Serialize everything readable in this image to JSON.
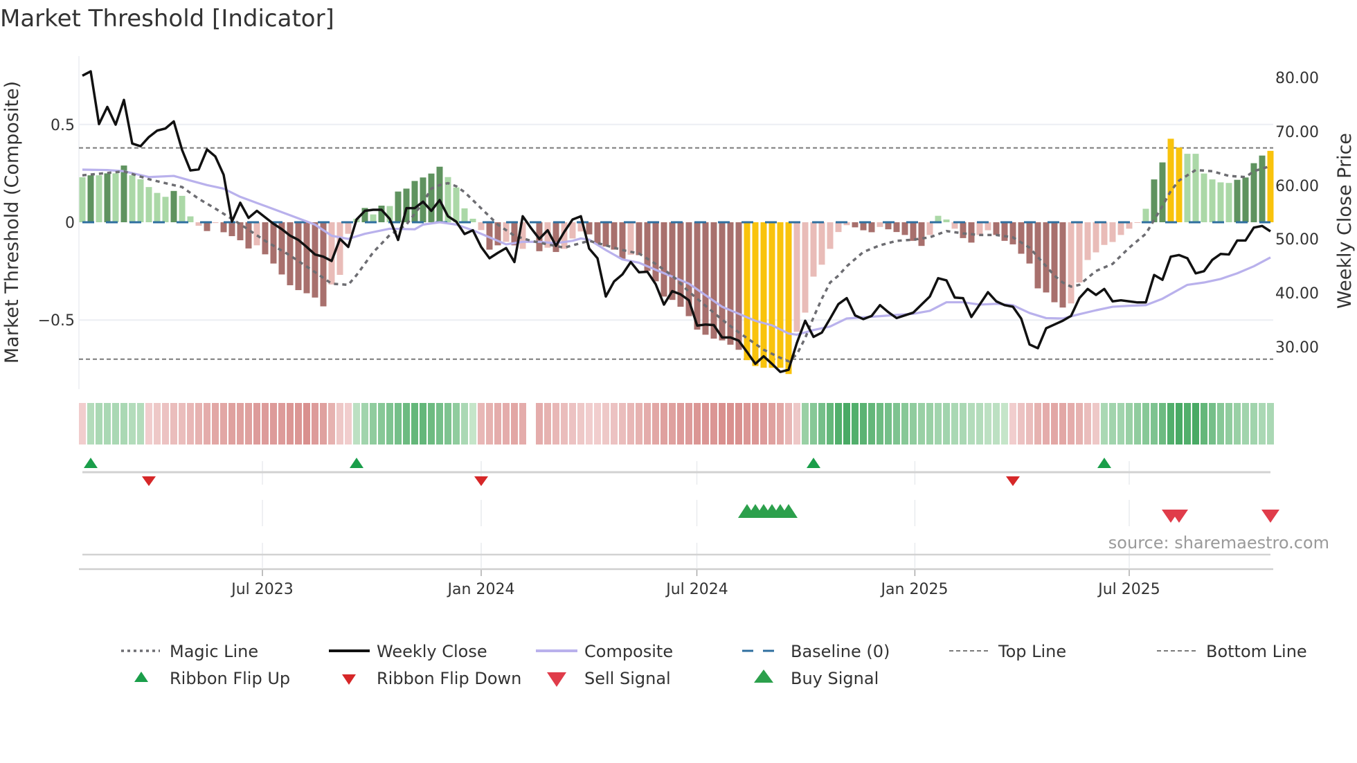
{
  "title": "Market Threshold [Indicator]",
  "source": "source: sharemaestro.com",
  "chart_data": {
    "type": "bar",
    "title": "Market Threshold [Indicator]",
    "ylabel": "Market Threshold (Composite)",
    "y2label": "Weekly Close Price",
    "xlabel": "",
    "x_unit": "week index",
    "ylim": [
      -0.83,
      0.83
    ],
    "y2lim": [
      20,
      83
    ],
    "yticks": [
      {
        "v": 0.5,
        "label": "0.5"
      },
      {
        "v": 0,
        "label": "0"
      },
      {
        "v": -0.5,
        "label": "−0.5"
      }
    ],
    "y2ticks": [
      {
        "v": 80,
        "label": "80.00"
      },
      {
        "v": 70,
        "label": "70.00"
      },
      {
        "v": 60,
        "label": "60.00"
      },
      {
        "v": 50,
        "label": "50.00"
      },
      {
        "v": 40,
        "label": "40.00"
      },
      {
        "v": 30,
        "label": "30.00"
      }
    ],
    "xticks": [
      {
        "i": 21.67,
        "label": "Jul 2023"
      },
      {
        "i": 48.0,
        "label": "Jan 2024"
      },
      {
        "i": 73.96,
        "label": "Jul 2024"
      },
      {
        "i": 100.2,
        "label": "Jan 2025"
      },
      {
        "i": 126.0,
        "label": "Jul 2025"
      }
    ],
    "top_line": 0.38,
    "bottom_line": -0.7,
    "baseline": 0,
    "grid": true,
    "legend_placement": "bottom",
    "composite_bars": [
      0.23,
      0.24,
      0.24,
      0.25,
      0.25,
      0.29,
      0.24,
      0.22,
      0.18,
      0.15,
      0.13,
      0.16,
      0.135,
      0.03,
      -0.018,
      -0.045,
      -0.004,
      -0.051,
      -0.071,
      -0.092,
      -0.134,
      -0.118,
      -0.164,
      -0.211,
      -0.267,
      -0.322,
      -0.347,
      -0.363,
      -0.385,
      -0.43,
      -0.318,
      -0.269,
      -0.059,
      0.018,
      0.073,
      0.04,
      0.085,
      0.083,
      0.157,
      0.172,
      0.211,
      0.229,
      0.249,
      0.284,
      0.231,
      0.178,
      0.071,
      0.018,
      -0.04,
      -0.14,
      -0.118,
      -0.1,
      -0.118,
      -0.136,
      null,
      -0.148,
      -0.13,
      -0.152,
      -0.136,
      -0.083,
      -0.047,
      -0.062,
      -0.109,
      -0.124,
      -0.14,
      -0.187,
      -0.166,
      -0.168,
      -0.249,
      -0.302,
      -0.38,
      -0.397,
      -0.432,
      -0.48,
      -0.549,
      -0.575,
      -0.595,
      -0.604,
      -0.626,
      -0.652,
      -0.705,
      -0.735,
      -0.744,
      -0.744,
      -0.744,
      -0.776,
      -0.56,
      -0.462,
      -0.278,
      -0.217,
      -0.136,
      -0.05,
      -0.015,
      -0.026,
      -0.041,
      -0.051,
      -0.024,
      -0.036,
      -0.05,
      -0.065,
      -0.095,
      -0.121,
      -0.065,
      0.033,
      0.014,
      -0.033,
      -0.081,
      -0.104,
      -0.065,
      -0.041,
      -0.065,
      -0.095,
      -0.113,
      -0.161,
      -0.211,
      -0.338,
      -0.359,
      -0.409,
      -0.436,
      -0.415,
      -0.308,
      -0.193,
      -0.154,
      -0.116,
      -0.101,
      -0.065,
      -0.033,
      0,
      0.069,
      0.219,
      0.306,
      0.427,
      0.382,
      0.35,
      0.35,
      0.249,
      0.219,
      0.204,
      0.201,
      0.217,
      0.229,
      0.302,
      0.341,
      0.365
    ],
    "bar_style": [
      "g",
      "G",
      "g",
      "G",
      "g",
      "G",
      "g",
      "g",
      "g",
      "g",
      "g",
      "G",
      "g",
      "g",
      "p",
      "P",
      "p",
      "P",
      "P",
      "P",
      "P",
      "p",
      "P",
      "P",
      "P",
      "P",
      "P",
      "P",
      "P",
      "P",
      "p",
      "p",
      "p",
      "g",
      "G",
      "g",
      "G",
      "g",
      "G",
      "G",
      "G",
      "G",
      "G",
      "G",
      "g",
      "g",
      "g",
      "g",
      "p",
      "P",
      "P",
      "p",
      "P",
      "p",
      "n",
      "P",
      "p",
      "P",
      "p",
      "p",
      "p",
      "P",
      "P",
      "P",
      "P",
      "P",
      "p",
      "P",
      "P",
      "P",
      "P",
      "P",
      "P",
      "P",
      "P",
      "P",
      "P",
      "P",
      "P",
      "P",
      "y",
      "y",
      "y",
      "y",
      "y",
      "y",
      "p",
      "p",
      "p",
      "p",
      "p",
      "p",
      "p",
      "P",
      "P",
      "P",
      "p",
      "P",
      "P",
      "P",
      "P",
      "P",
      "p",
      "g",
      "g",
      "p",
      "P",
      "P",
      "p",
      "p",
      "P",
      "P",
      "P",
      "P",
      "P",
      "P",
      "P",
      "P",
      "P",
      "p",
      "p",
      "p",
      "p",
      "p",
      "p",
      "p",
      "p",
      "p",
      "g",
      "G",
      "G",
      "y",
      "y",
      "g",
      "g",
      "g",
      "g",
      "g",
      "g",
      "G",
      "G",
      "G",
      "G",
      "y"
    ],
    "bar_colors": {
      "g": "#abd8a7",
      "G": "#5f935f",
      "p": "#e9bcb8",
      "P": "#a8706d",
      "y": "#f9c30c"
    },
    "weekly_close": [
      80.3,
      81.1,
      71.3,
      74.5,
      71.2,
      75.8,
      67.7,
      67.2,
      68.9,
      70.1,
      70.5,
      71.8,
      66.5,
      62.7,
      62.9,
      66.6,
      65.3,
      61.9,
      53.2,
      56.7,
      53.9,
      55.2,
      54.0,
      52.8,
      51.8,
      50.6,
      49.8,
      48.5,
      47.1,
      46.7,
      45.9,
      50.0,
      48.5,
      53.6,
      55.2,
      55.4,
      55.4,
      53.7,
      49.8,
      55.7,
      55.7,
      56.9,
      55.2,
      57.2,
      54.2,
      53.2,
      50.9,
      51.6,
      48.5,
      46.4,
      47.4,
      48.3,
      45.7,
      54.2,
      52.0,
      50.0,
      51.6,
      48.7,
      51.3,
      53.6,
      54.2,
      48.2,
      46.4,
      39.3,
      42.1,
      43.4,
      45.7,
      43.8,
      43.9,
      41.6,
      37.8,
      40.3,
      39.7,
      38.6,
      33.9,
      34.1,
      34.0,
      31.7,
      31.7,
      31.1,
      29.0,
      26.8,
      28.2,
      26.8,
      25.3,
      25.7,
      30.7,
      34.8,
      31.8,
      32.6,
      35.2,
      37.9,
      39.0,
      35.8,
      35.1,
      35.7,
      37.7,
      36.4,
      35.3,
      35.8,
      36.3,
      37.8,
      39.3,
      42.7,
      42.3,
      39.1,
      39.0,
      35.5,
      37.8,
      40.1,
      38.4,
      37.7,
      37.4,
      35.2,
      30.4,
      29.7,
      33.4,
      34.1,
      34.8,
      35.7,
      39.0,
      40.7,
      39.6,
      40.7,
      38.4,
      38.6,
      38.4,
      38.2,
      38.2,
      43.3,
      42.4,
      46.7,
      47.0,
      46.4,
      43.6,
      44.0,
      46.1,
      47.2,
      47.1,
      49.7,
      49.7,
      52.1,
      52.4,
      51.4
    ],
    "magic_line": [
      [
        0,
        0.24
      ],
      [
        5,
        0.26
      ],
      [
        8,
        0.22
      ],
      [
        12,
        0.18
      ],
      [
        14,
        0.12
      ],
      [
        16,
        0.07
      ],
      [
        19,
        -0.01
      ],
      [
        22,
        -0.095
      ],
      [
        25,
        -0.17
      ],
      [
        28,
        -0.255
      ],
      [
        30,
        -0.314
      ],
      [
        32,
        -0.32
      ],
      [
        33,
        -0.27
      ],
      [
        35,
        -0.154
      ],
      [
        37,
        -0.065
      ],
      [
        39,
        -0.012
      ],
      [
        41,
        0.1
      ],
      [
        42,
        0.172
      ],
      [
        43,
        0.19
      ],
      [
        44,
        0.2
      ],
      [
        45,
        0.184
      ],
      [
        46,
        0.154
      ],
      [
        47,
        0.113
      ],
      [
        48,
        0.071
      ],
      [
        49,
        0.03
      ],
      [
        50,
        -0.012
      ],
      [
        52,
        -0.069
      ],
      [
        54,
        -0.095
      ],
      [
        56,
        -0.113
      ],
      [
        58,
        -0.13
      ],
      [
        59,
        -0.118
      ],
      [
        61,
        -0.095
      ],
      [
        63,
        -0.118
      ],
      [
        65,
        -0.142
      ],
      [
        67,
        -0.16
      ],
      [
        69,
        -0.213
      ],
      [
        71,
        -0.273
      ],
      [
        73,
        -0.355
      ],
      [
        75,
        -0.427
      ],
      [
        77,
        -0.498
      ],
      [
        79,
        -0.563
      ],
      [
        81,
        -0.622
      ],
      [
        82,
        -0.652
      ],
      [
        84,
        -0.693
      ],
      [
        85,
        -0.711
      ],
      [
        86,
        -0.675
      ],
      [
        87,
        -0.592
      ],
      [
        88,
        -0.486
      ],
      [
        89,
        -0.391
      ],
      [
        90,
        -0.308
      ],
      [
        91,
        -0.273
      ],
      [
        92,
        -0.225
      ],
      [
        94,
        -0.152
      ],
      [
        96,
        -0.118
      ],
      [
        98,
        -0.095
      ],
      [
        100,
        -0.089
      ],
      [
        102,
        -0.077
      ],
      [
        104,
        -0.045
      ],
      [
        106,
        -0.057
      ],
      [
        108,
        -0.065
      ],
      [
        110,
        -0.065
      ],
      [
        112,
        -0.077
      ],
      [
        114,
        -0.13
      ],
      [
        116,
        -0.225
      ],
      [
        117,
        -0.273
      ],
      [
        118,
        -0.308
      ],
      [
        119,
        -0.329
      ],
      [
        120,
        -0.32
      ],
      [
        122,
        -0.249
      ],
      [
        124,
        -0.213
      ],
      [
        126,
        -0.13
      ],
      [
        128,
        -0.059
      ],
      [
        129,
        0.012
      ],
      [
        130,
        0.083
      ],
      [
        131,
        0.16
      ],
      [
        132,
        0.213
      ],
      [
        134,
        0.267
      ],
      [
        136,
        0.261
      ],
      [
        138,
        0.237
      ],
      [
        140,
        0.231
      ],
      [
        141,
        0.261
      ],
      [
        143,
        0.287
      ]
    ],
    "composite_line": [
      [
        0,
        0.269
      ],
      [
        3,
        0.267
      ],
      [
        5,
        0.261
      ],
      [
        8,
        0.231
      ],
      [
        11,
        0.237
      ],
      [
        13,
        0.213
      ],
      [
        15,
        0.19
      ],
      [
        17,
        0.172
      ],
      [
        19,
        0.13
      ],
      [
        22,
        0.083
      ],
      [
        25,
        0.036
      ],
      [
        28,
        -0.012
      ],
      [
        30,
        -0.069
      ],
      [
        32,
        -0.085
      ],
      [
        34,
        -0.059
      ],
      [
        37,
        -0.033
      ],
      [
        40,
        -0.036
      ],
      [
        41,
        -0.012
      ],
      [
        43,
        0
      ],
      [
        45,
        -0.012
      ],
      [
        47,
        -0.041
      ],
      [
        49,
        -0.077
      ],
      [
        51,
        -0.113
      ],
      [
        53,
        -0.1
      ],
      [
        55,
        -0.1
      ],
      [
        57,
        -0.107
      ],
      [
        59,
        -0.095
      ],
      [
        60,
        -0.083
      ],
      [
        61,
        -0.089
      ],
      [
        63,
        -0.142
      ],
      [
        65,
        -0.19
      ],
      [
        67,
        -0.207
      ],
      [
        69,
        -0.243
      ],
      [
        71,
        -0.278
      ],
      [
        73,
        -0.314
      ],
      [
        75,
        -0.373
      ],
      [
        77,
        -0.432
      ],
      [
        79,
        -0.468
      ],
      [
        81,
        -0.504
      ],
      [
        83,
        -0.527
      ],
      [
        85,
        -0.569
      ],
      [
        86,
        -0.575
      ],
      [
        88,
        -0.551
      ],
      [
        90,
        -0.533
      ],
      [
        92,
        -0.492
      ],
      [
        94,
        -0.486
      ],
      [
        96,
        -0.48
      ],
      [
        98,
        -0.474
      ],
      [
        100,
        -0.468
      ],
      [
        102,
        -0.453
      ],
      [
        104,
        -0.409
      ],
      [
        106,
        -0.409
      ],
      [
        108,
        -0.421
      ],
      [
        110,
        -0.417
      ],
      [
        112,
        -0.424
      ],
      [
        114,
        -0.464
      ],
      [
        116,
        -0.49
      ],
      [
        118,
        -0.492
      ],
      [
        120,
        -0.47
      ],
      [
        122,
        -0.45
      ],
      [
        124,
        -0.432
      ],
      [
        126,
        -0.427
      ],
      [
        128,
        -0.424
      ],
      [
        130,
        -0.391
      ],
      [
        133,
        -0.32
      ],
      [
        135,
        -0.308
      ],
      [
        137,
        -0.29
      ],
      [
        139,
        -0.261
      ],
      [
        141,
        -0.225
      ],
      [
        143,
        -0.18
      ]
    ],
    "ribbon": [
      -0.15,
      0.25,
      0.3,
      0.3,
      0.3,
      0.3,
      0.25,
      0.25,
      -0.15,
      -0.2,
      -0.25,
      -0.3,
      -0.3,
      -0.35,
      -0.4,
      -0.45,
      -0.5,
      -0.5,
      -0.55,
      -0.55,
      -0.55,
      -0.6,
      -0.6,
      -0.6,
      -0.6,
      -0.65,
      -0.65,
      -0.7,
      -0.6,
      -0.55,
      -0.4,
      -0.2,
      -0.15,
      0.2,
      0.35,
      0.45,
      0.5,
      0.55,
      0.6,
      0.65,
      0.7,
      0.7,
      0.65,
      0.6,
      0.55,
      0.45,
      0.3,
      0.15,
      -0.35,
      -0.4,
      -0.45,
      -0.45,
      -0.5,
      -0.45,
      null,
      -0.45,
      -0.4,
      -0.35,
      -0.3,
      -0.25,
      -0.2,
      -0.15,
      -0.15,
      -0.2,
      -0.25,
      -0.3,
      -0.35,
      -0.4,
      -0.45,
      -0.5,
      -0.55,
      -0.55,
      -0.6,
      -0.6,
      -0.65,
      -0.65,
      -0.65,
      -0.7,
      -0.7,
      -0.7,
      -0.65,
      -0.65,
      -0.6,
      -0.55,
      -0.5,
      -0.35,
      -0.2,
      0.4,
      0.5,
      0.6,
      0.7,
      0.8,
      0.85,
      0.8,
      0.75,
      0.7,
      0.65,
      0.6,
      0.55,
      0.5,
      0.45,
      0.4,
      0.4,
      0.35,
      0.35,
      0.3,
      0.3,
      0.25,
      0.25,
      0.2,
      0.2,
      0.15,
      -0.15,
      -0.25,
      -0.3,
      -0.4,
      -0.45,
      -0.5,
      -0.5,
      -0.45,
      -0.4,
      -0.3,
      -0.2,
      0.3,
      0.35,
      0.35,
      0.4,
      0.45,
      0.5,
      0.55,
      0.65,
      0.8,
      0.85,
      0.8,
      0.85,
      0.7,
      0.6,
      0.5,
      0.45,
      0.4,
      0.35,
      0.35,
      0.3,
      0.3
    ],
    "ribbon_flip_up": [
      1,
      33,
      88,
      123
    ],
    "ribbon_flip_down": [
      8,
      48,
      112
    ],
    "buy_signal": [
      80,
      81,
      82,
      83,
      84,
      85
    ],
    "sell_signal": [
      131,
      132,
      143
    ],
    "colors": {
      "close": "#111111",
      "composite": "#b9b1ec",
      "magic": "#6d6d72",
      "baseline": "#2f6f9f",
      "threshold": "#7a7a7a",
      "flip_up": "#1a9e4a",
      "flip_down": "#d62728",
      "buy": "#2ca04c",
      "sell": "#e03c4a"
    },
    "legend": [
      {
        "key": "magic",
        "label": "Magic Line"
      },
      {
        "key": "close",
        "label": "Weekly Close"
      },
      {
        "key": "composite",
        "label": "Composite"
      },
      {
        "key": "baseline",
        "label": "Baseline (0)"
      },
      {
        "key": "top",
        "label": "Top Line"
      },
      {
        "key": "bottom",
        "label": "Bottom Line"
      },
      {
        "key": "flip_up",
        "label": "Ribbon Flip Up"
      },
      {
        "key": "flip_down",
        "label": "Ribbon Flip Down"
      },
      {
        "key": "sell",
        "label": "Sell Signal"
      },
      {
        "key": "buy",
        "label": "Buy Signal"
      }
    ]
  }
}
